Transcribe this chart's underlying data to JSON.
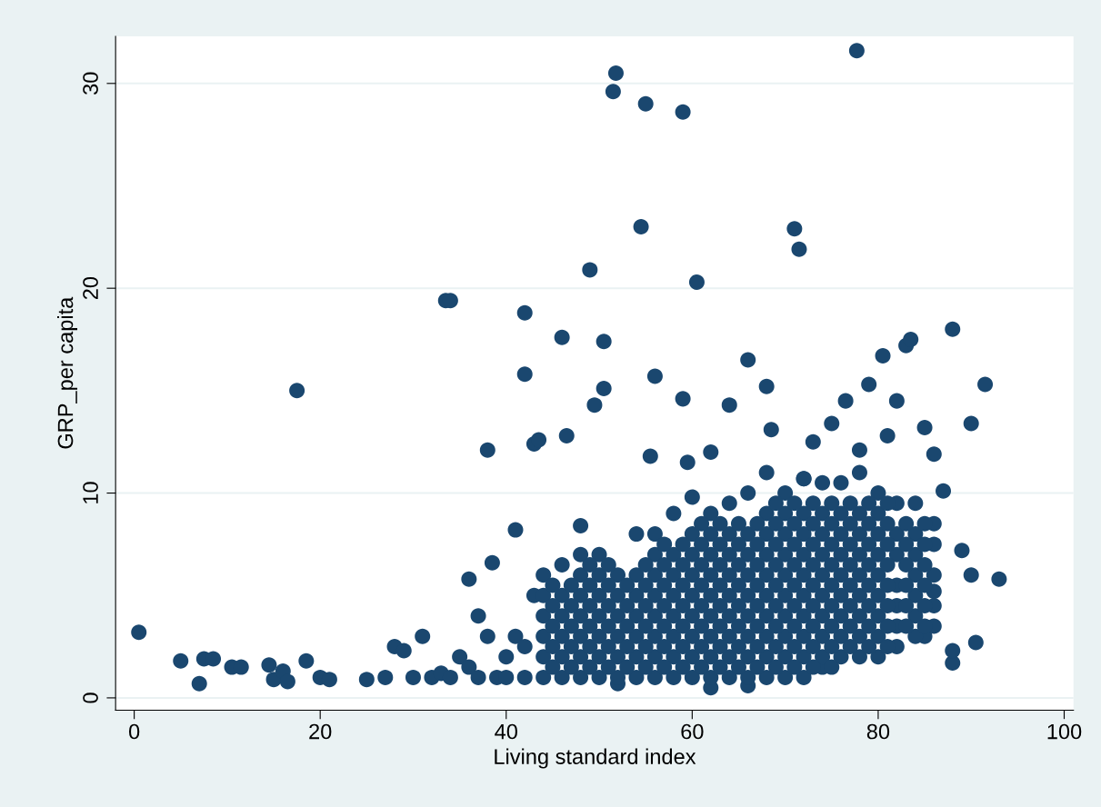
{
  "chart_data": {
    "type": "scatter",
    "xlabel": "Living standard index",
    "ylabel": "GRP_per capita",
    "xlim": [
      -2,
      101
    ],
    "ylim": [
      -0.6,
      32.3
    ],
    "xticks": [
      0,
      20,
      40,
      60,
      80,
      100
    ],
    "yticks": [
      0,
      10,
      20,
      30
    ],
    "grid": "y",
    "marker": "circle",
    "series": [
      {
        "color": "#1a476f",
        "x": [
          0.5,
          5,
          7,
          7.5,
          8.5,
          10.5,
          11.5,
          14.5,
          15,
          16,
          16.5,
          17.5,
          18.5,
          20,
          21,
          25,
          27,
          28,
          29,
          30,
          31,
          33.5,
          34,
          35,
          36,
          37,
          38,
          38.5,
          41,
          42,
          42,
          43,
          43.5,
          46,
          46.5,
          48,
          49,
          49.5,
          50.5,
          50.5,
          51.5,
          51.8,
          54.5,
          55,
          55.5,
          56,
          59,
          59,
          59.5,
          60.5,
          62,
          64,
          66,
          68,
          68.5,
          71,
          71.5,
          72,
          73,
          75,
          76.5,
          77.7,
          78,
          79,
          80.5,
          81,
          82,
          83,
          83.5,
          85,
          86,
          88,
          90,
          91.5,
          93,
          90.5,
          88,
          88,
          89,
          90,
          85,
          86,
          87,
          62,
          52,
          66,
          32,
          33,
          34,
          36,
          37,
          38,
          39,
          40,
          40,
          41,
          42,
          42,
          43,
          44,
          44,
          44,
          44,
          44,
          44,
          46,
          46,
          46,
          46,
          46,
          46,
          48,
          48,
          48,
          48,
          48,
          48,
          48,
          50,
          50,
          50,
          50,
          50,
          50,
          50,
          52,
          52,
          52,
          52,
          52,
          52,
          54,
          54,
          54,
          54,
          54,
          54,
          54,
          56,
          56,
          56,
          56,
          56,
          56,
          56,
          56,
          58,
          58,
          58,
          58,
          58,
          58,
          58,
          58,
          60,
          60,
          60,
          60,
          60,
          60,
          60,
          60,
          60,
          62,
          62,
          62,
          62,
          62,
          62,
          62,
          62,
          62,
          64,
          64,
          64,
          64,
          64,
          64,
          64,
          64,
          64,
          66,
          66,
          66,
          66,
          66,
          66,
          66,
          66,
          66,
          68,
          68,
          68,
          68,
          68,
          68,
          68,
          68,
          68,
          68,
          70,
          70,
          70,
          70,
          70,
          70,
          70,
          70,
          70,
          70,
          72,
          72,
          72,
          72,
          72,
          72,
          72,
          72,
          72,
          72,
          74,
          74,
          74,
          74,
          74,
          74,
          74,
          74,
          74,
          74,
          76,
          76,
          76,
          76,
          76,
          76,
          76,
          76,
          76,
          78,
          78,
          78,
          78,
          78,
          78,
          78,
          78,
          78,
          80,
          80,
          80,
          80,
          80,
          80,
          80,
          80,
          80,
          82,
          82,
          82,
          82,
          82,
          82,
          82,
          84,
          84,
          84,
          84,
          84,
          84,
          84,
          86,
          86,
          86,
          86,
          86,
          45,
          45,
          45,
          45,
          45,
          47,
          47,
          47,
          47,
          47,
          49,
          49,
          49,
          49,
          49,
          49,
          51,
          51,
          51,
          51,
          51,
          51,
          53,
          53,
          53,
          53,
          53,
          55,
          55,
          55,
          55,
          55,
          55,
          57,
          57,
          57,
          57,
          57,
          57,
          57,
          59,
          59,
          59,
          59,
          59,
          59,
          59,
          61,
          61,
          61,
          61,
          61,
          61,
          61,
          61,
          63,
          63,
          63,
          63,
          63,
          63,
          63,
          63,
          65,
          65,
          65,
          65,
          65,
          65,
          65,
          65,
          67,
          67,
          67,
          67,
          67,
          67,
          67,
          67,
          69,
          69,
          69,
          69,
          69,
          69,
          69,
          69,
          69,
          71,
          71,
          71,
          71,
          71,
          71,
          71,
          71,
          71,
          73,
          73,
          73,
          73,
          73,
          73,
          73,
          73,
          73,
          75,
          75,
          75,
          75,
          75,
          75,
          75,
          75,
          75,
          77,
          77,
          77,
          77,
          77,
          77,
          77,
          77,
          79,
          79,
          79,
          79,
          79,
          79,
          79,
          79,
          81,
          81,
          81,
          81,
          81,
          81,
          81,
          81,
          83,
          83,
          83,
          83,
          83,
          83,
          85,
          85,
          85,
          85,
          85,
          85
        ],
        "values": [
          3.2,
          1.8,
          0.7,
          1.9,
          1.9,
          1.5,
          1.5,
          1.6,
          0.9,
          1.3,
          0.8,
          15,
          1.8,
          1.0,
          0.9,
          0.9,
          1.0,
          2.5,
          2.3,
          1.0,
          3.0,
          19.4,
          19.4,
          2.0,
          5.8,
          4.0,
          12.1,
          6.6,
          8.2,
          15.8,
          18.8,
          12.4,
          12.6,
          17.6,
          12.8,
          8.4,
          20.9,
          14.3,
          15.1,
          17.4,
          29.6,
          30.5,
          23.0,
          29.0,
          11.8,
          15.7,
          28.6,
          14.6,
          11.5,
          20.3,
          12.0,
          14.3,
          16.5,
          15.2,
          13.1,
          22.9,
          21.9,
          10.7,
          12.5,
          13.4,
          14.5,
          31.6,
          12.1,
          15.3,
          16.7,
          12.8,
          14.5,
          17.2,
          17.5,
          13.2,
          11.9,
          18.0,
          13.4,
          15.3,
          5.8,
          2.7,
          1.7,
          2.3,
          7.2,
          6.0,
          3.0,
          5.2,
          10.1,
          0.5,
          0.7,
          0.6,
          1,
          1.2,
          1,
          1.5,
          1,
          3,
          1,
          1,
          2,
          3,
          1,
          2.5,
          5,
          1,
          2,
          3,
          4,
          5,
          6,
          1,
          2,
          3,
          4,
          5,
          6.5,
          1,
          2,
          3,
          4,
          5,
          6,
          7,
          1,
          2,
          3,
          4,
          5,
          6,
          7,
          1,
          2,
          3,
          4,
          5,
          6,
          1,
          2,
          3,
          4,
          5,
          6,
          8,
          1,
          2,
          3,
          4,
          5,
          6,
          7,
          8,
          1,
          2,
          3,
          4,
          5,
          6,
          7,
          9,
          1,
          2,
          3,
          4,
          5,
          6,
          7,
          8,
          9.8,
          1,
          2,
          3,
          4,
          5,
          6,
          7,
          8,
          9,
          1,
          2,
          3,
          4,
          5,
          6,
          7,
          8,
          9.5,
          1,
          2,
          3,
          4,
          5,
          6,
          7,
          8,
          10,
          1,
          2,
          3,
          4,
          5,
          6,
          7,
          8,
          9,
          11,
          1,
          2,
          3,
          4,
          5,
          6,
          7,
          8,
          9,
          10,
          1,
          2,
          3,
          4,
          5,
          6,
          7,
          8,
          9,
          10.7,
          1.5,
          2,
          3,
          4,
          5,
          6,
          7,
          8,
          9,
          10.5,
          2,
          3,
          4,
          5,
          6,
          7,
          8,
          9,
          10.5,
          2,
          3,
          4,
          5,
          6,
          7,
          8,
          9,
          11,
          2,
          3,
          4,
          5,
          6,
          7,
          8,
          9,
          10,
          2.5,
          3.5,
          4.5,
          5.5,
          7,
          8,
          9.5,
          3,
          4,
          5,
          6,
          7,
          8,
          9.5,
          3.5,
          4.5,
          6,
          7.5,
          8.5,
          1.5,
          2.5,
          3.5,
          4.5,
          5.5,
          1.5,
          2.5,
          3.5,
          4.5,
          5.5,
          1.5,
          2.5,
          3.5,
          4.5,
          5.5,
          6.5,
          1.5,
          2.5,
          3.5,
          4.5,
          5.5,
          6.5,
          1.5,
          2.5,
          3.5,
          4.5,
          5.5,
          1.5,
          2.5,
          3.5,
          4.5,
          5.5,
          6.5,
          1.5,
          2.5,
          3.5,
          4.5,
          5.5,
          6.5,
          7.5,
          1.5,
          2.5,
          3.5,
          4.5,
          5.5,
          6.5,
          7.5,
          1.5,
          2.5,
          3.5,
          4.5,
          5.5,
          6.5,
          7.5,
          8.5,
          1.5,
          2.5,
          3.5,
          4.5,
          5.5,
          6.5,
          7.5,
          8.5,
          1.5,
          2.5,
          3.5,
          4.5,
          5.5,
          6.5,
          7.5,
          8.5,
          1.5,
          2.5,
          3.5,
          4.5,
          5.5,
          6.5,
          7.5,
          8.5,
          1.5,
          2.5,
          3.5,
          4.5,
          5.5,
          6.5,
          7.5,
          8.5,
          9.5,
          1.5,
          2.5,
          3.5,
          4.5,
          5.5,
          6.5,
          7.5,
          8.5,
          9.5,
          1.5,
          2.5,
          3.5,
          4.5,
          5.5,
          6.5,
          7.5,
          8.5,
          9.5,
          1.5,
          2.5,
          3.5,
          4.5,
          5.5,
          6.5,
          7.5,
          8.5,
          9.5,
          2.5,
          3.5,
          4.5,
          5.5,
          6.5,
          7.5,
          8.5,
          9.5,
          2.5,
          3.5,
          4.5,
          5.5,
          6.5,
          7.5,
          8.5,
          9.5,
          2.5,
          3.5,
          4.5,
          5.5,
          6.5,
          7.5,
          8.5,
          9.5,
          3.5,
          4.5,
          5.5,
          6.5,
          7.5,
          8.5,
          3.5,
          4.5,
          5.5,
          6.5,
          7.5,
          8.5
        ]
      }
    ]
  }
}
